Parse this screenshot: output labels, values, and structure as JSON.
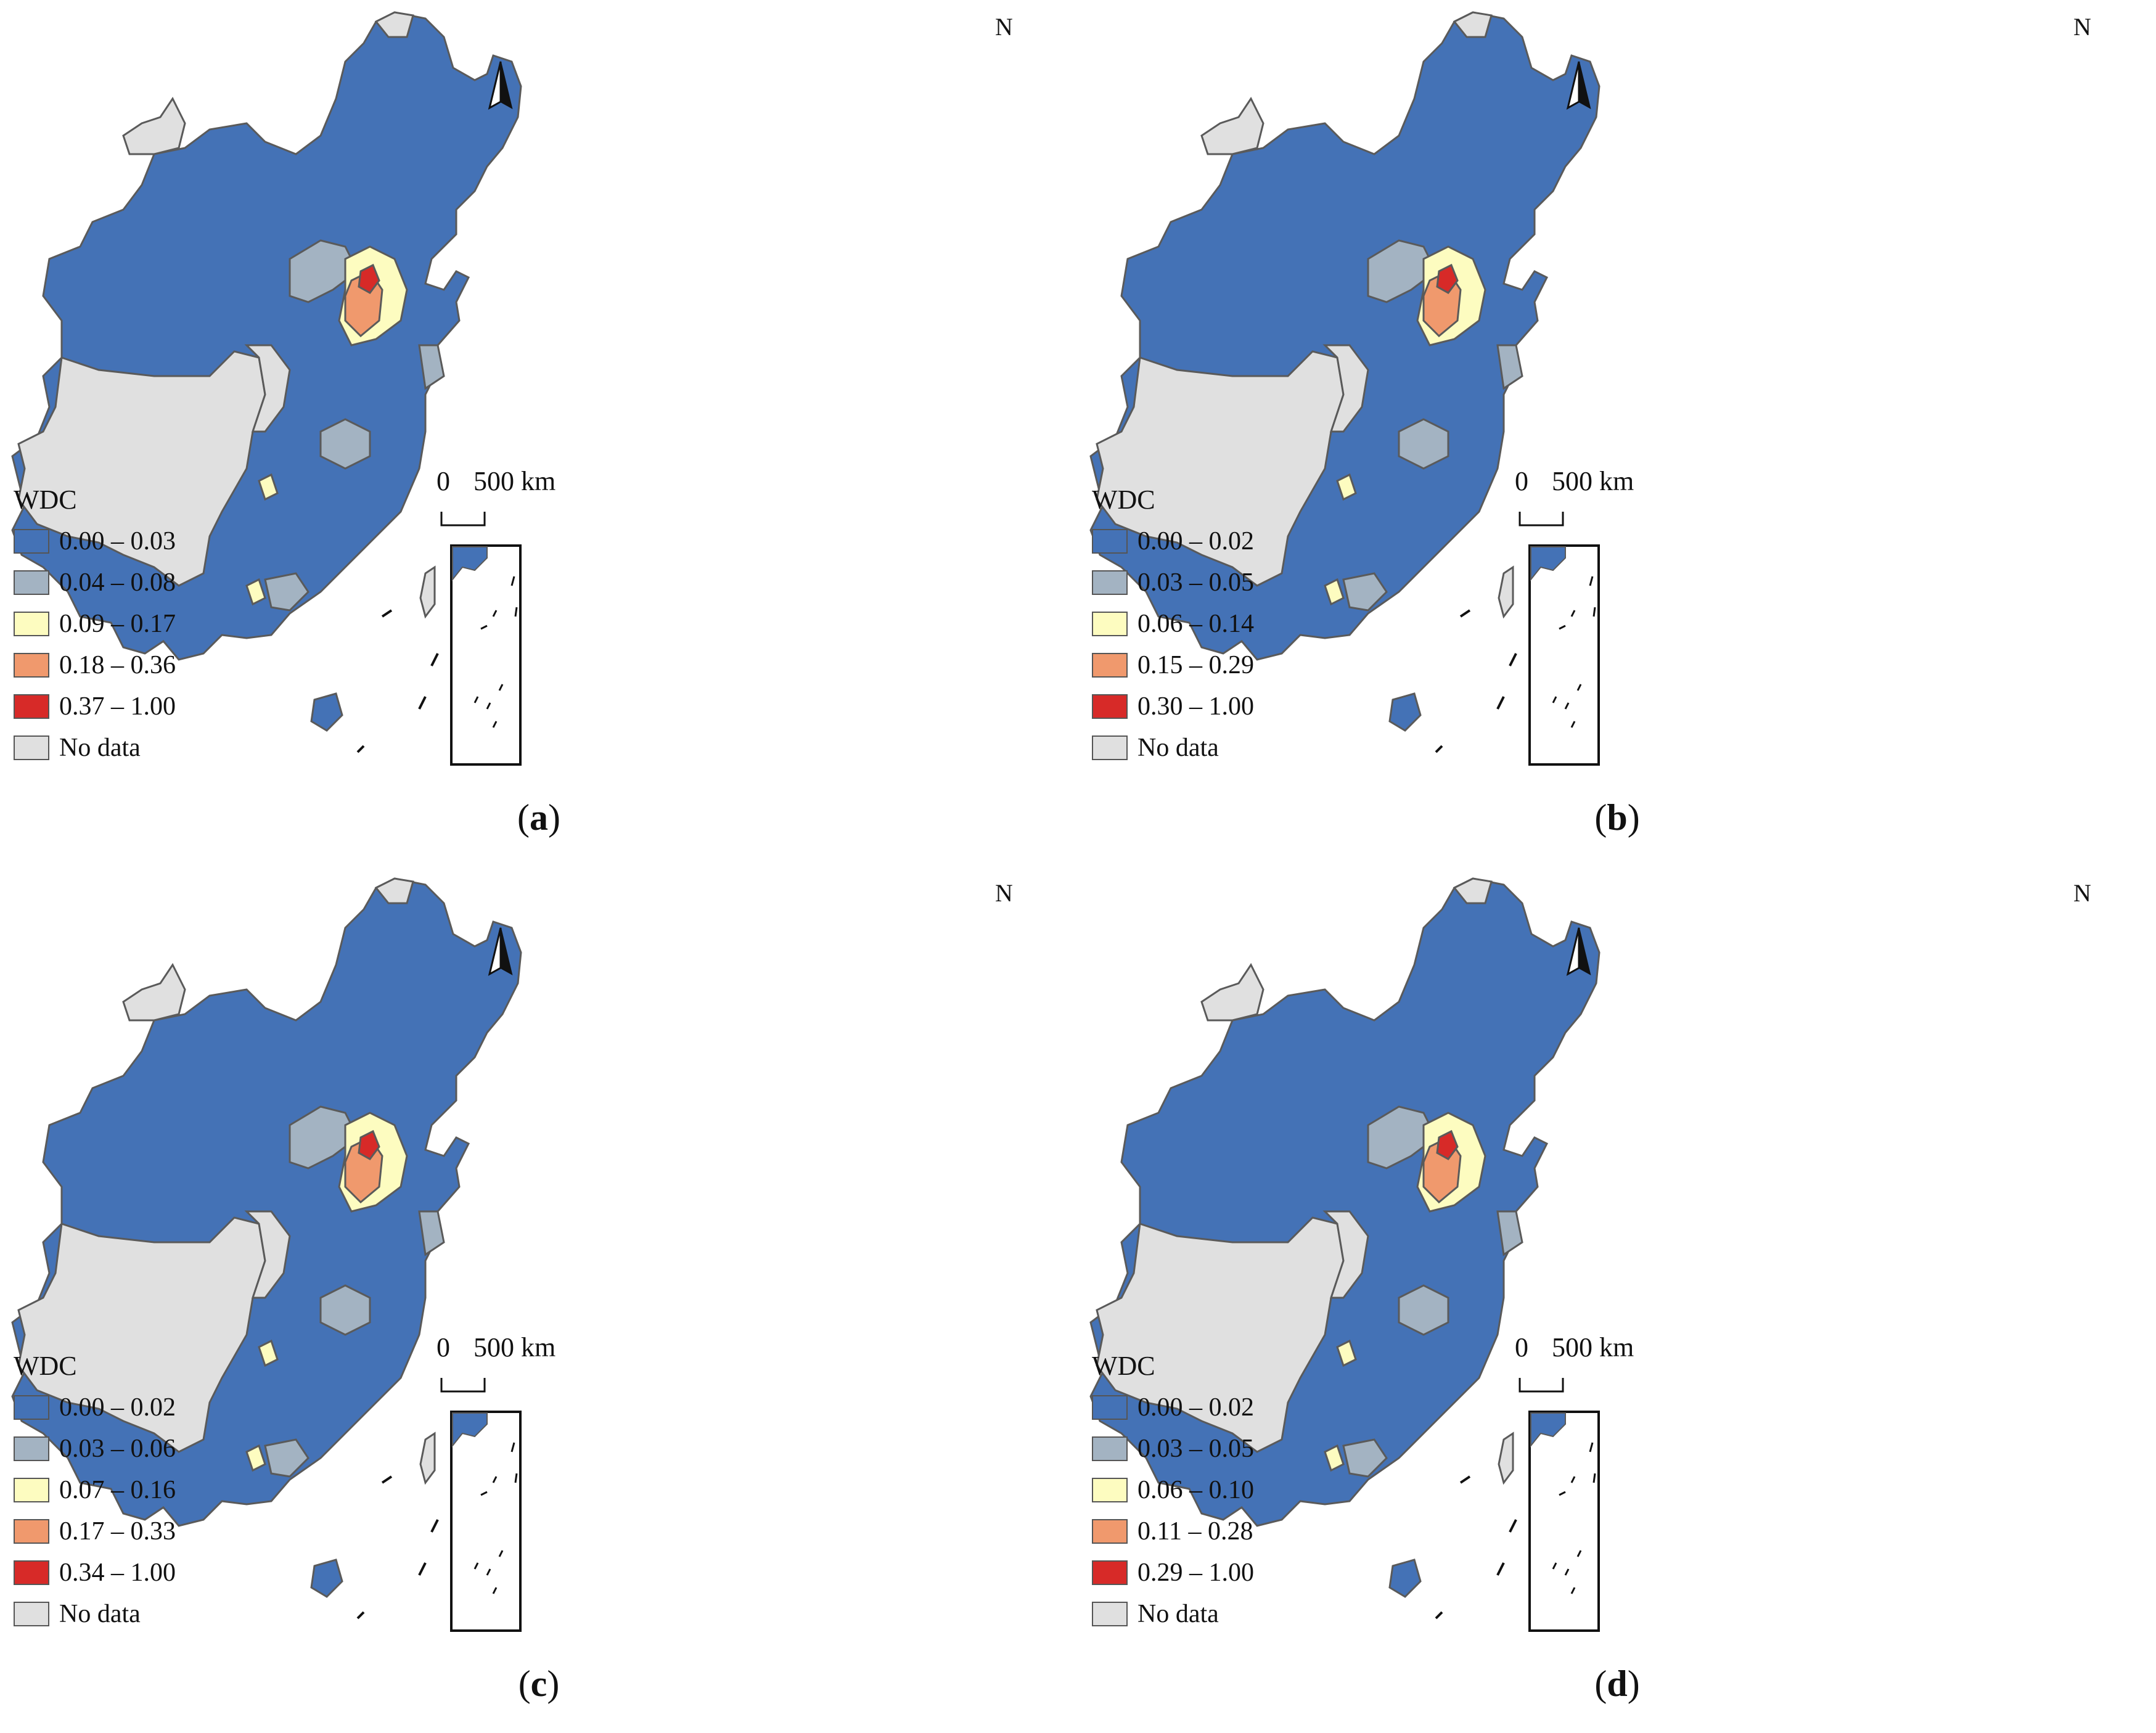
{
  "legend_title": "WDC",
  "no_data_label": "No data",
  "north_label": "N",
  "scale_zero": "0",
  "scale_label": "500 km",
  "colors": {
    "class1": "#4472b6",
    "class2": "#a3b3c2",
    "class3": "#fdfcc0",
    "class4": "#f0996d",
    "class5": "#d72a28",
    "nodata": "#e0e0e0",
    "border": "#5a5a5a"
  },
  "panels": [
    {
      "label": "a",
      "classes": [
        "0.00 – 0.03",
        "0.04 – 0.08",
        "0.09 – 0.17",
        "0.18 – 0.36",
        "0.37 – 1.00"
      ]
    },
    {
      "label": "b",
      "classes": [
        "0.00 – 0.02",
        "0.03 – 0.05",
        "0.06 – 0.14",
        "0.15 – 0.29",
        "0.30 – 1.00"
      ]
    },
    {
      "label": "c",
      "classes": [
        "0.00 – 0.02",
        "0.03 – 0.06",
        "0.07 – 0.16",
        "0.17 – 0.33",
        "0.34 – 1.00"
      ]
    },
    {
      "label": "d",
      "classes": [
        "0.00 – 0.02",
        "0.03 – 0.05",
        "0.06 – 0.10",
        "0.11 – 0.28",
        "0.29 – 1.00"
      ]
    }
  ]
}
